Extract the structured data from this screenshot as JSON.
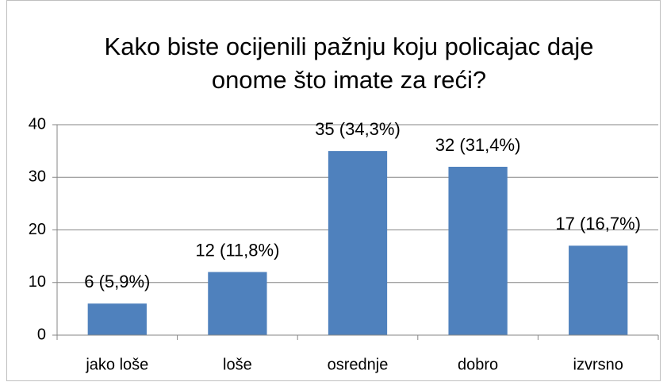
{
  "chart_data": {
    "type": "bar",
    "title": "Kako biste ocijenili pažnju koju policajac daje onome što imate za reći?",
    "categories": [
      "jako loše",
      "loše",
      "osrednje",
      "dobro",
      "izvrsno"
    ],
    "values": [
      6,
      12,
      35,
      32,
      17
    ],
    "value_labels": [
      "6 (5,9%)",
      "12 (11,8%)",
      "35 (34,3%)",
      "32 (31,4%)",
      "17 (16,7%)"
    ],
    "color": "#4f81bd",
    "ylim": [
      0,
      40
    ],
    "yticks": [
      0,
      10,
      20,
      30,
      40
    ],
    "grid": true
  }
}
